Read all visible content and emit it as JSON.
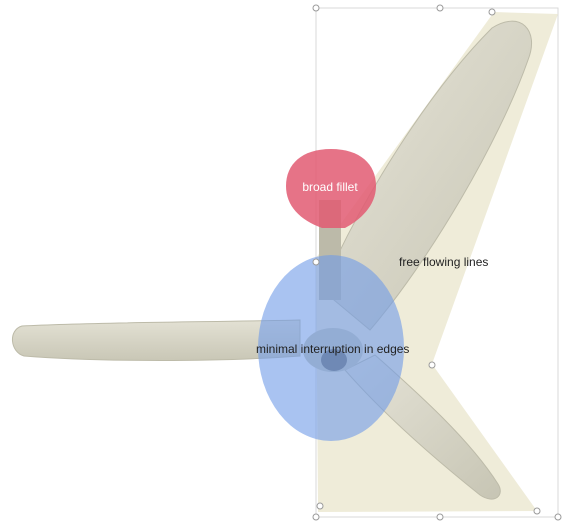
{
  "annotations": {
    "fillet_label": "broad fillet",
    "lines_label": "free flowing lines",
    "edges_label": "minimal interruption in edges"
  },
  "colors": {
    "background": "#ffffff",
    "blade": "#d8d6c8",
    "blade_shadow": "#b9b7a6",
    "hub": "#6e6e6a",
    "fillet_highlight": "#e25a72",
    "edges_highlight": "#6f9be8",
    "lines_highlight": "#ece9d2",
    "selection_frame": "#d9d9d9",
    "handle": "#9a9a9a",
    "label_dark": "#222222",
    "label_light": "#ffffff"
  },
  "icons": {
    "selection_handle": "circle-handle"
  }
}
